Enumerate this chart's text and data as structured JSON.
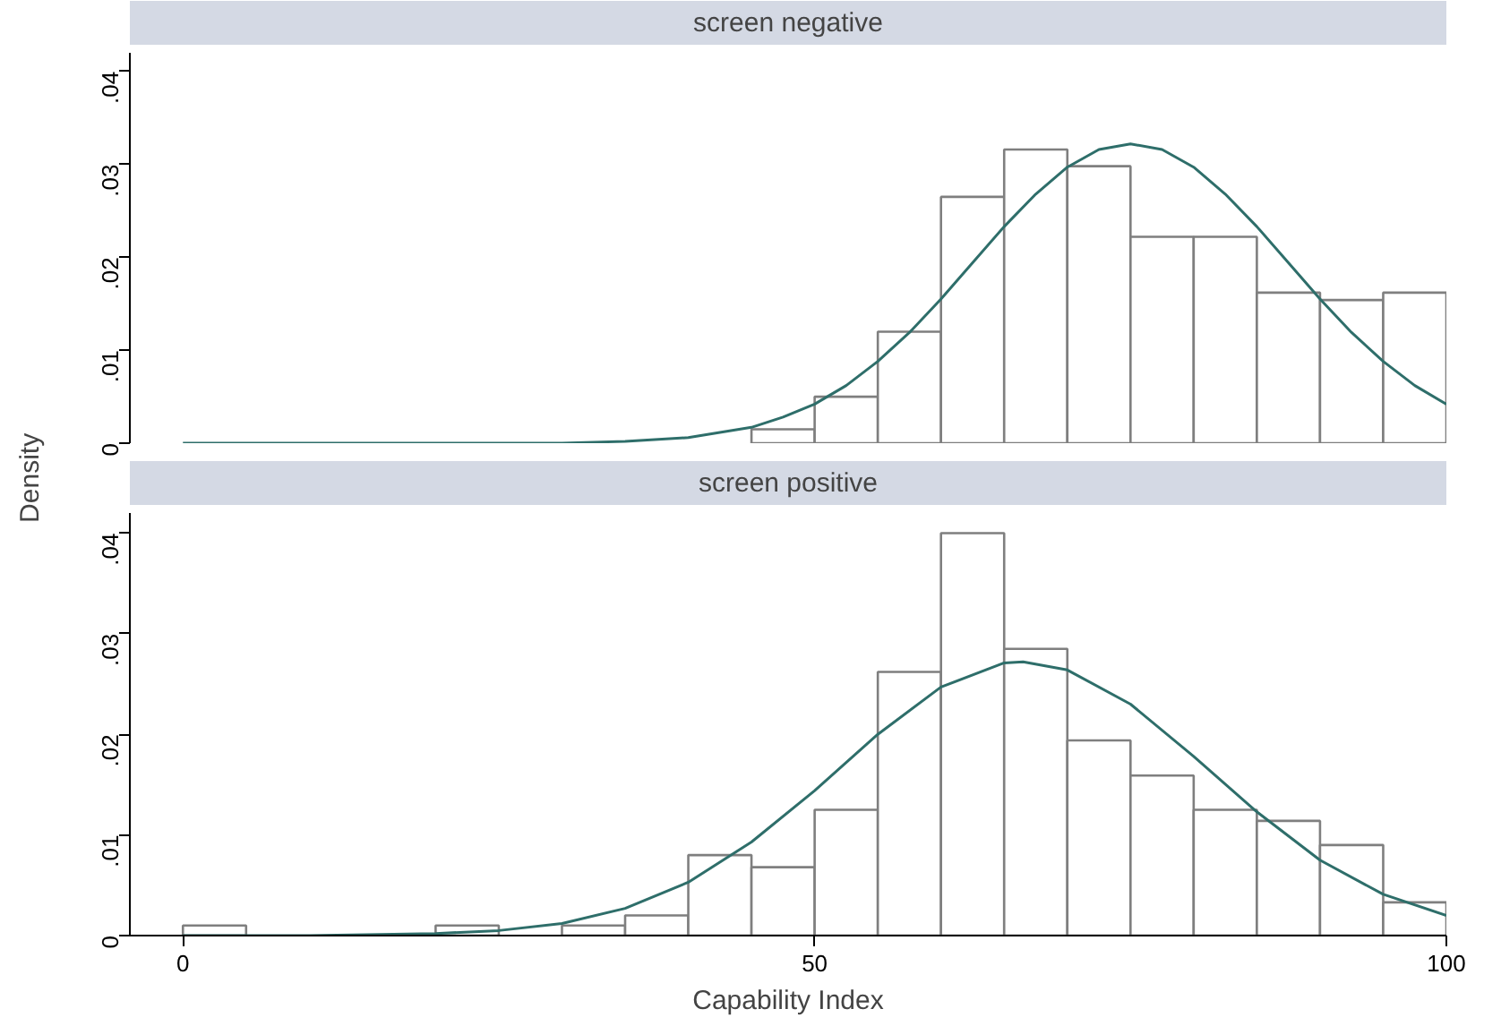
{
  "chart_data": [
    {
      "type": "histogram",
      "title": "screen negative",
      "ylabel": "Density",
      "bins": [
        0,
        5,
        10,
        15,
        20,
        25,
        30,
        35,
        40,
        45,
        50,
        55,
        60,
        65,
        70,
        75,
        80,
        85,
        90,
        95,
        100
      ],
      "values": [
        0,
        0,
        0,
        0,
        0,
        0,
        0,
        0,
        0,
        0.0015,
        0.005,
        0.012,
        0.0265,
        0.0316,
        0.0298,
        0.0222,
        0.0222,
        0.0162,
        0.0154,
        0.0162
      ],
      "color": "#ffffff",
      "series": [
        {
          "type": "line",
          "color": "#2e6e6a",
          "x": [
            0,
            10,
            20,
            30,
            35,
            40,
            45,
            47.5,
            50,
            52.5,
            55,
            57.5,
            60,
            62.5,
            65,
            67.5,
            70,
            72.5,
            75,
            77.5,
            80,
            82.5,
            85,
            87.5,
            90,
            92.5,
            95,
            97.5,
            100
          ],
          "values": [
            0,
            0,
            0,
            0,
            0.0002,
            0.0006,
            0.0017,
            0.0028,
            0.0042,
            0.0062,
            0.0088,
            0.0119,
            0.0155,
            0.0194,
            0.0233,
            0.0268,
            0.0297,
            0.0316,
            0.0322,
            0.0316,
            0.0297,
            0.0268,
            0.0233,
            0.0194,
            0.0155,
            0.0119,
            0.0088,
            0.0062,
            0.0042
          ]
        }
      ],
      "xlim": [
        -4.2,
        100
      ],
      "xticks": [
        0,
        50,
        100
      ],
      "ylim": [
        0,
        0.042
      ],
      "yticks": [
        0,
        {
          "value": 0.01,
          "label": ".01"
        },
        {
          "value": 0.02,
          "label": ".02"
        },
        {
          "value": 0.03,
          "label": ".03"
        },
        {
          "value": 0.04,
          "label": ".04"
        }
      ],
      "tick_labels": "y",
      "grid": false
    },
    {
      "type": "histogram",
      "title": "screen positive",
      "xlabel": "Capability Index",
      "bins": [
        0,
        5,
        10,
        15,
        20,
        25,
        30,
        35,
        40,
        45,
        50,
        55,
        60,
        65,
        70,
        75,
        80,
        85,
        90,
        95,
        100
      ],
      "values": [
        0.001,
        0,
        0,
        0,
        0.001,
        0,
        0.001,
        0.002,
        0.008,
        0.0068,
        0.0125,
        0.0262,
        0.04,
        0.0285,
        0.0194,
        0.0159,
        0.0125,
        0.0114,
        0.009,
        0.0033
      ],
      "color": "#ffffff",
      "series": [
        {
          "type": "line",
          "color": "#2e6e6a",
          "x": [
            0,
            10,
            20,
            25,
            30,
            35,
            40,
            45,
            50,
            55,
            60,
            65,
            66.5,
            70,
            75,
            80,
            85,
            90,
            95,
            100
          ],
          "values": [
            0,
            0,
            0.0002,
            0.0005,
            0.0012,
            0.0027,
            0.0053,
            0.0093,
            0.0144,
            0.02,
            0.0247,
            0.0271,
            0.0272,
            0.0264,
            0.023,
            0.0178,
            0.0123,
            0.0075,
            0.0041,
            0.002
          ]
        }
      ],
      "xlim": [
        -4.2,
        100
      ],
      "xticks": [
        0,
        50,
        100
      ],
      "ylim": [
        0,
        0.042
      ],
      "yticks": [
        0,
        {
          "value": 0.01,
          "label": ".01"
        },
        {
          "value": 0.02,
          "label": ".02"
        },
        {
          "value": 0.03,
          "label": ".03"
        },
        {
          "value": 0.04,
          "label": ".04"
        }
      ],
      "grid": false
    }
  ]
}
